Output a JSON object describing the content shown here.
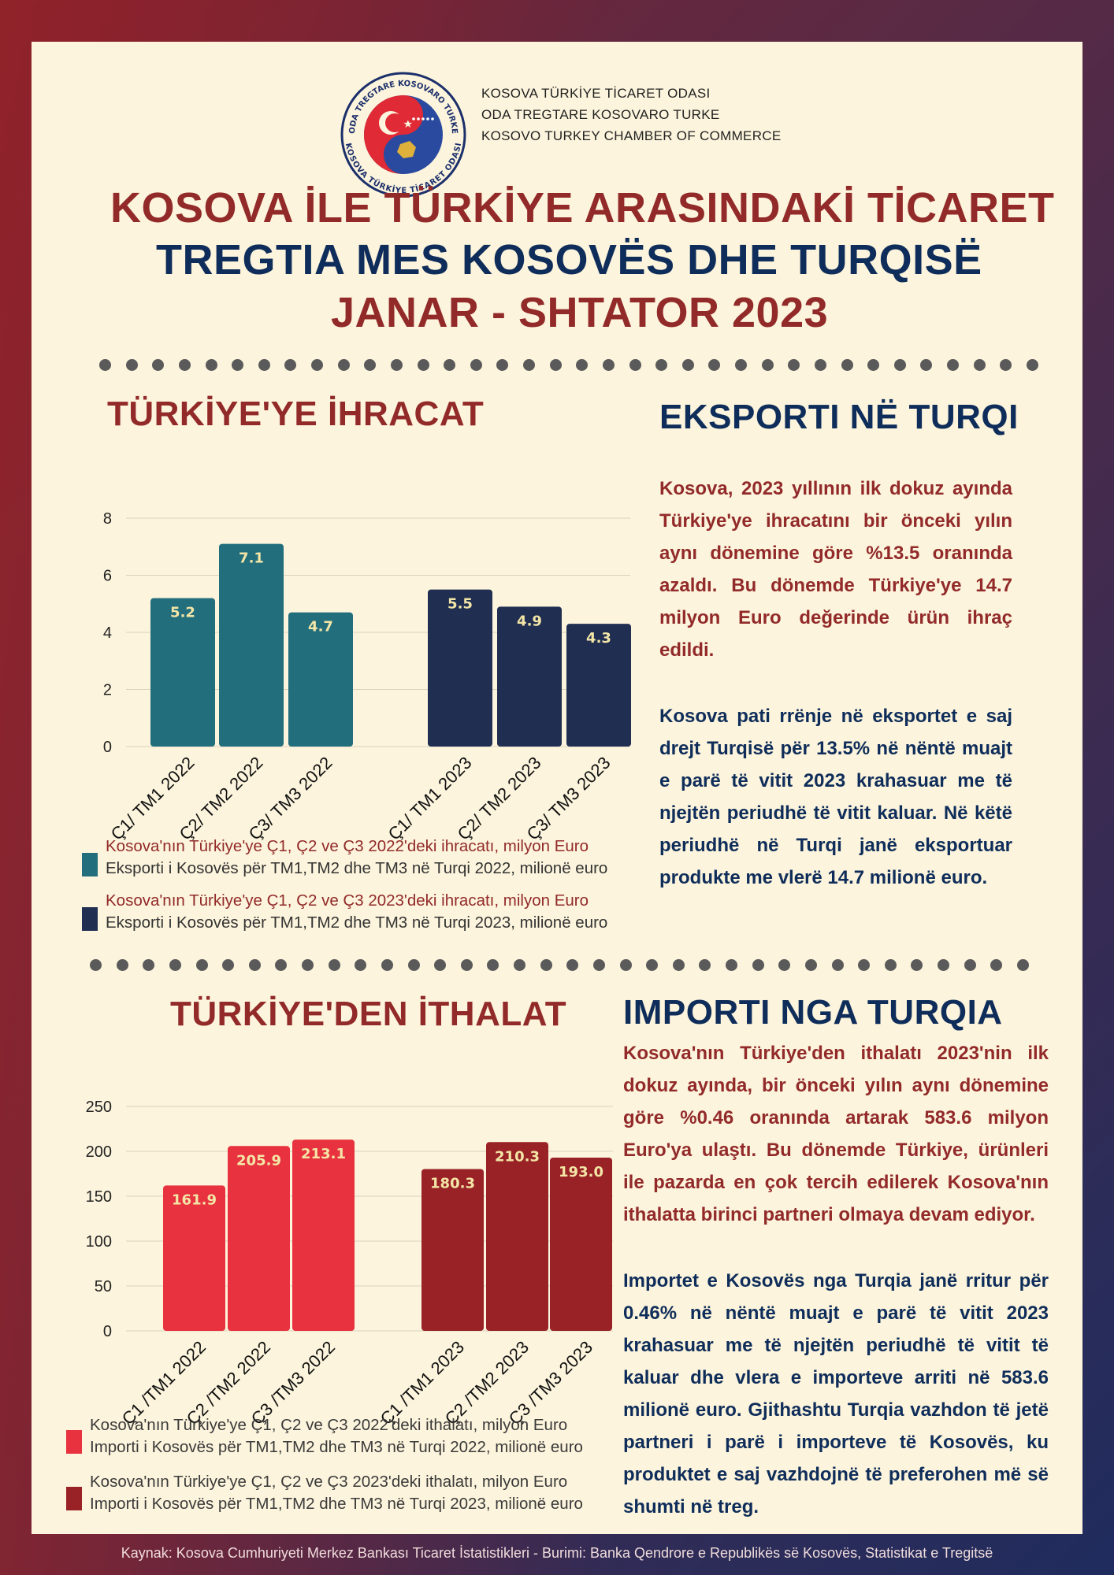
{
  "header": {
    "org_lines": [
      "KOSOVA TÜRKİYE TİCARET ODASI",
      "ODA TREGTARE KOSOVARO TURKE",
      "KOSOVO TURKEY CHAMBER OF COMMERCE"
    ],
    "logo_ring_top": "ODA TREGTARE KOSOVARO TURKE",
    "logo_ring_bottom": "KOSOVA TÜRKİYE TİCARET ODASI",
    "title_tr": "KOSOVA İLE TÜRKİYE ARASINDAKİ TİCARET",
    "title_sq": "TREGTIA MES KOSOVËS DHE TURQISË",
    "period": "JANAR - SHTATOR 2023"
  },
  "export_section": {
    "title_tr": "TÜRKİYE'YE İHRACAT",
    "title_sq": "EKSPORTI NË TURQI",
    "text_tr": "Kosova, 2023 yıllının ilk dokuz ayında Türkiye'ye ihracatını bir önceki yılın aynı dönemine göre %13.5 oranında azaldı. Bu dönemde Türkiye'ye 14.7 milyon Euro değerinde ürün ihraç edildi.",
    "text_sq": "Kosova pati rrënje në eksportet e saj drejt Turqisë për 13.5% në nëntë muajt e parë të vitit 2023 krahasuar me të njejtën periudhë të vitit kaluar. Në këtë periudhë në Turqi janë eksportuar produkte me vlerë 14.7 milionë euro.",
    "legend": [
      {
        "tr": "Kosova'nın Türkiye'ye Ç1, Ç2 ve Ç3 2022'deki ihracatı, milyon Euro",
        "sq": "Eksporti i Kosovës për TM1,TM2 dhe TM3 në Turqi 2022, milionë euro",
        "color": "#236e7d"
      },
      {
        "tr": "Kosova'nın Türkiye'ye Ç1, Ç2 ve Ç3 2023'deki ihracatı, milyon Euro",
        "sq": "Eksporti i Kosovës për TM1,TM2 dhe TM3 në Turqi 2023, milionë euro",
        "color": "#202e52"
      }
    ]
  },
  "import_section": {
    "title_tr": "TÜRKİYE'DEN İTHALAT",
    "title_sq": "IMPORTI NGA TURQIA",
    "text_tr": "Kosova'nın Türkiye'den ithalatı 2023'nin ilk dokuz ayında, bir önceki yılın aynı dönemine göre %0.46 oranında artarak 583.6 milyon Euro'ya ulaştı. Bu dönemde Türkiye, ürünleri ile pazarda en çok tercih edilerek Kosova'nın ithalatta birinci partneri olmaya devam ediyor.",
    "text_sq": "Importet e Kosovës nga Turqia janë rritur për 0.46% në nëntë muajt e parë të vitit 2023 krahasuar me të njejtën periudhë të vitit të kaluar dhe vlera e importeve arriti në 583.6 milionë euro. Gjithashtu Turqia vazhdon të jetë partneri i parë i importeve të Kosovës, ku produktet e saj vazhdojnë të preferohen më së shumti në treg.",
    "legend": [
      {
        "tr": "Kosova'nın Türkiye'ye Ç1, Ç2 ve Ç3 2022'deki ithalatı, milyon Euro",
        "sq": "Importi i Kosovës për TM1,TM2 dhe TM3 në Turqi 2022, milionë euro",
        "color": "#e8323f"
      },
      {
        "tr": "Kosova'nın Türkiye'ye Ç1, Ç2 ve Ç3 2023'deki ithalatı, milyon Euro",
        "sq": "Importi i Kosovës për TM1,TM2 dhe TM3 në Turqi 2023, milionë euro",
        "color": "#992227"
      }
    ]
  },
  "footer": "Kaynak: Kosova Cumhuriyeti Merkez Bankası Ticaret İstatistikleri -   Burimi: Banka Qendrore e Republikës së Kosovës, Statistikat e Tregitsë",
  "chart_data": [
    {
      "type": "bar",
      "categories": [
        "Ç1/ TM1 2022",
        "Ç2/ TM2 2022",
        "Ç3/ TM3 2022",
        "Ç1/ TM1 2023",
        "Ç2/ TM2 2023",
        "Ç3/ TM3 2023"
      ],
      "values": [
        5.2,
        7.1,
        4.7,
        5.5,
        4.9,
        4.3
      ],
      "colors": [
        "#236e7d",
        "#236e7d",
        "#236e7d",
        "#202e52",
        "#202e52",
        "#202e52"
      ],
      "yticks": [
        0,
        2,
        4,
        6,
        8
      ],
      "ylim": [
        0,
        8
      ],
      "grid": true
    },
    {
      "type": "bar",
      "categories": [
        "Ç1 /TM1 2022",
        "Ç2 /TM2 2022",
        "Ç3 /TM3 2022",
        "Ç1 /TM1 2023",
        "Ç2 /TM2 2023",
        "Ç3 /TM3 2023"
      ],
      "values": [
        161.9,
        205.9,
        213.1,
        180.3,
        210.3,
        193.0
      ],
      "labels": [
        "161.9",
        "205.9",
        "213.1",
        "180.3",
        "210.3",
        "193.0"
      ],
      "colors": [
        "#e8323f",
        "#e8323f",
        "#e8323f",
        "#992227",
        "#992227",
        "#992227"
      ],
      "yticks": [
        0,
        50,
        100,
        150,
        200,
        250
      ],
      "ylim": [
        0,
        250
      ],
      "grid": true
    }
  ]
}
